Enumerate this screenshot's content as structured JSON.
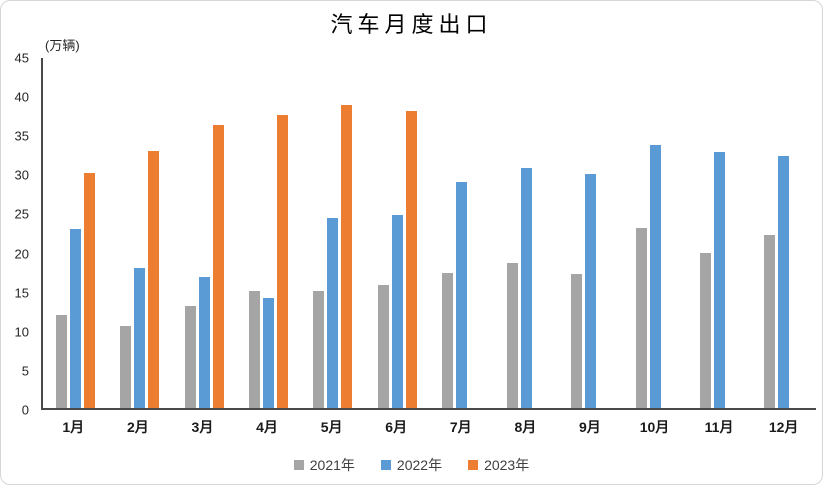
{
  "chart_data": {
    "type": "bar",
    "title": "汽车月度出口",
    "unit_label": "(万辆)",
    "categories": [
      "1月",
      "2月",
      "3月",
      "4月",
      "5月",
      "6月",
      "7月",
      "8月",
      "9月",
      "10月",
      "11月",
      "12月"
    ],
    "series": [
      {
        "name": "2021年",
        "color": "#A5A5A5",
        "values": [
          11.9,
          10.5,
          13.1,
          15.0,
          15.0,
          15.8,
          17.4,
          18.6,
          17.2,
          23.1,
          19.9,
          22.3
        ]
      },
      {
        "name": "2022年",
        "color": "#5B9BD5",
        "values": [
          23.0,
          18.0,
          16.9,
          14.1,
          24.4,
          24.8,
          29.0,
          30.8,
          30.1,
          33.8,
          32.9,
          32.4
        ]
      },
      {
        "name": "2023年",
        "color": "#ED7D31",
        "values": [
          30.2,
          33.0,
          36.4,
          37.7,
          38.9,
          38.2,
          null,
          null,
          null,
          null,
          null,
          null
        ]
      }
    ],
    "ylim": [
      0,
      45
    ],
    "ytick_step": 5,
    "grid": false,
    "legend_position": "bottom",
    "axis_color": "#4a4a4a"
  }
}
